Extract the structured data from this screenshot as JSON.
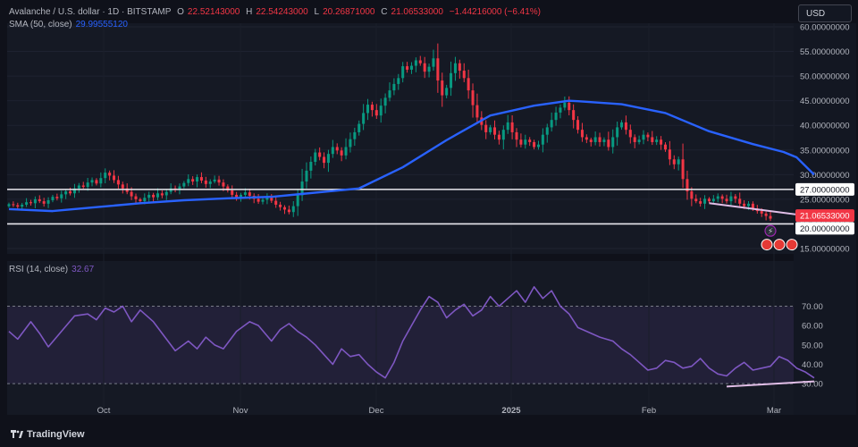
{
  "header": {
    "symbol": "Avalanche / U.S. dollar · 1D · BITSTAMP",
    "open_label": "O",
    "open": "22.52143000",
    "high_label": "H",
    "high": "22.54243000",
    "low_label": "L",
    "low": "20.26871000",
    "close_label": "C",
    "close": "21.06533000",
    "change": "−1.44216000 (−6.41%)",
    "sma_label": "SMA (50, close)",
    "sma_value": "29.99555120",
    "rsi_label": "RSI (14, close)",
    "rsi_value": "32.67"
  },
  "toolbar": {
    "currency": "USD"
  },
  "branding": {
    "name": "TradingView"
  },
  "colors": {
    "up": "#089981",
    "down": "#f23645",
    "sma": "#2962ff",
    "rsi": "#7e57c2",
    "level_line": "#e8e8ee",
    "trendline": "#e1bee7"
  },
  "chart_data": [
    {
      "type": "candlestick",
      "panel": "price",
      "x_tick_labels": [
        "Oct",
        "Nov",
        "Dec",
        "2025",
        "Feb",
        "Mar"
      ],
      "y_tick_labels": [
        "15.00000000",
        "20.00000000",
        "25.00000000",
        "30.00000000",
        "35.00000000",
        "40.00000000",
        "45.00000000",
        "50.00000000",
        "55.00000000",
        "60.00000000"
      ],
      "ylim": [
        15,
        60
      ],
      "close_series": [
        24.0,
        23.8,
        23.5,
        23.9,
        24.4,
        24.2,
        25.0,
        24.6,
        24.1,
        24.8,
        25.5,
        25.2,
        26.0,
        26.6,
        26.2,
        27.2,
        27.8,
        27.5,
        28.4,
        28.9,
        28.2,
        29.3,
        30.4,
        29.8,
        28.9,
        28.0,
        27.2,
        26.5,
        25.6,
        25.0,
        24.6,
        25.3,
        25.9,
        25.4,
        26.2,
        25.8,
        26.5,
        27.2,
        26.9,
        27.6,
        28.3,
        29.1,
        28.6,
        29.5,
        28.8,
        28.1,
        28.6,
        29.0,
        28.4,
        27.6,
        26.8,
        25.9,
        25.4,
        25.9,
        26.4,
        25.7,
        25.1,
        24.5,
        24.9,
        25.6,
        24.7,
        23.9,
        23.4,
        22.9,
        22.4,
        23.6,
        25.8,
        28.6,
        30.8,
        32.6,
        34.5,
        33.6,
        32.4,
        34.2,
        35.6,
        34.9,
        33.9,
        35.6,
        37.2,
        38.6,
        40.3,
        42.5,
        44.2,
        43.1,
        42.0,
        44.0,
        45.6,
        47.1,
        48.4,
        49.6,
        52.0,
        51.3,
        52.1,
        53.2,
        52.6,
        50.9,
        51.9,
        53.6,
        49.1,
        46.1,
        47.6,
        50.6,
        52.6,
        51.1,
        49.6,
        47.1,
        44.1,
        41.6,
        40.1,
        38.6,
        39.6,
        38.1,
        37.1,
        39.1,
        40.6,
        38.6,
        37.1,
        36.1,
        37.1,
        36.6,
        35.6,
        36.1,
        38.1,
        39.6,
        41.1,
        42.6,
        43.6,
        44.6,
        43.1,
        41.1,
        39.1,
        37.6,
        37.1,
        36.6,
        37.6,
        36.6,
        37.1,
        35.6,
        37.6,
        39.6,
        40.6,
        39.1,
        37.6,
        36.6,
        37.1,
        38.1,
        37.6,
        36.6,
        37.1,
        36.1,
        35.1,
        33.1,
        32.1,
        33.1,
        29.1,
        26.6,
        25.1,
        24.6,
        24.1,
        25.1,
        24.6,
        25.1,
        25.6,
        25.1,
        24.6,
        25.6,
        25.1,
        24.1,
        23.6,
        24.1,
        23.1,
        22.6,
        22.1,
        21.6,
        21.07
      ]
    },
    {
      "type": "line",
      "panel": "price",
      "name": "SMA (50, close)",
      "points": [
        [
          0,
          23.0
        ],
        [
          10,
          22.6
        ],
        [
          20,
          23.4
        ],
        [
          30,
          24.2
        ],
        [
          40,
          24.8
        ],
        [
          50,
          25.2
        ],
        [
          60,
          25.5
        ],
        [
          66,
          26.0
        ],
        [
          80,
          27.2
        ],
        [
          90,
          31.5
        ],
        [
          100,
          37.0
        ],
        [
          110,
          42.0
        ],
        [
          120,
          44.0
        ],
        [
          128,
          45.0
        ],
        [
          130,
          44.9
        ],
        [
          140,
          44.3
        ],
        [
          150,
          42.5
        ],
        [
          160,
          38.8
        ],
        [
          170,
          36.2
        ],
        [
          177,
          34.6
        ],
        [
          180,
          33.5
        ],
        [
          184,
          30.0
        ]
      ]
    },
    {
      "type": "line",
      "panel": "rsi",
      "name": "RSI (14, close)",
      "y_tick_labels": [
        "30.00",
        "40.00",
        "50.00",
        "60.00",
        "70.00"
      ],
      "ylim": [
        25,
        85
      ],
      "points": [
        [
          0,
          57
        ],
        [
          2,
          53
        ],
        [
          5,
          62
        ],
        [
          7,
          56
        ],
        [
          9,
          49
        ],
        [
          12,
          57
        ],
        [
          15,
          65
        ],
        [
          18,
          66
        ],
        [
          20,
          63
        ],
        [
          22,
          69
        ],
        [
          24,
          67
        ],
        [
          26,
          70
        ],
        [
          28,
          62
        ],
        [
          30,
          68
        ],
        [
          33,
          62
        ],
        [
          36,
          53
        ],
        [
          38,
          47
        ],
        [
          41,
          52
        ],
        [
          43,
          48
        ],
        [
          45,
          54
        ],
        [
          47,
          50
        ],
        [
          49,
          48
        ],
        [
          52,
          57
        ],
        [
          55,
          62
        ],
        [
          57,
          60
        ],
        [
          60,
          52
        ],
        [
          62,
          58
        ],
        [
          64,
          61
        ],
        [
          66,
          57
        ],
        [
          68,
          54
        ],
        [
          70,
          50
        ],
        [
          72,
          45
        ],
        [
          74,
          40
        ],
        [
          76,
          48
        ],
        [
          78,
          44
        ],
        [
          80,
          45
        ],
        [
          82,
          40
        ],
        [
          84,
          36
        ],
        [
          86,
          33
        ],
        [
          88,
          41
        ],
        [
          90,
          52
        ],
        [
          92,
          60
        ],
        [
          94,
          68
        ],
        [
          96,
          75
        ],
        [
          98,
          72
        ],
        [
          100,
          64
        ],
        [
          102,
          68
        ],
        [
          104,
          71
        ],
        [
          106,
          65
        ],
        [
          108,
          68
        ],
        [
          110,
          75
        ],
        [
          112,
          70
        ],
        [
          114,
          74
        ],
        [
          116,
          78
        ],
        [
          118,
          72
        ],
        [
          120,
          80
        ],
        [
          122,
          74
        ],
        [
          124,
          78
        ],
        [
          126,
          70
        ],
        [
          128,
          66
        ],
        [
          130,
          59
        ],
        [
          132,
          57
        ],
        [
          135,
          54
        ],
        [
          138,
          52
        ],
        [
          140,
          48
        ],
        [
          142,
          45
        ],
        [
          144,
          41
        ],
        [
          146,
          37
        ],
        [
          148,
          38
        ],
        [
          150,
          42
        ],
        [
          152,
          41
        ],
        [
          154,
          38
        ],
        [
          156,
          39
        ],
        [
          158,
          43
        ],
        [
          160,
          38
        ],
        [
          162,
          35
        ],
        [
          164,
          34
        ],
        [
          166,
          38
        ],
        [
          168,
          41
        ],
        [
          170,
          37
        ],
        [
          172,
          38
        ],
        [
          174,
          39
        ],
        [
          176,
          44
        ],
        [
          178,
          42
        ],
        [
          180,
          38
        ],
        [
          182,
          36
        ],
        [
          184,
          33
        ]
      ]
    }
  ],
  "annotations": {
    "level_high": 27,
    "level_low": 20,
    "price_label_high": "27.00000000",
    "price_label_close": "21.06533000",
    "price_label_low": "20.00000000",
    "rsi_band_upper": 70,
    "rsi_band_lower": 30,
    "price_trendline": [
      [
        160,
        24.2
      ],
      [
        181,
        21.8
      ]
    ],
    "rsi_trendline": [
      [
        164,
        28.5
      ],
      [
        184,
        31.2
      ]
    ]
  }
}
